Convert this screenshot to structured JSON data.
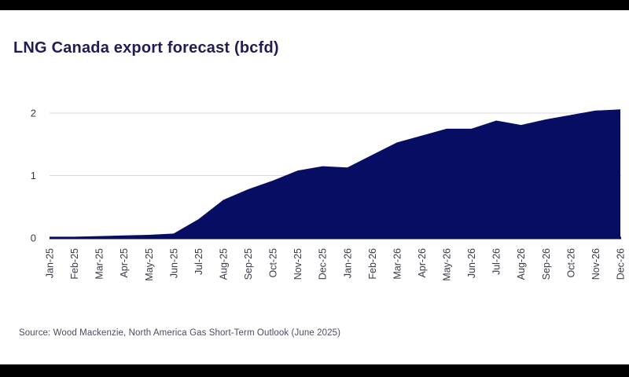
{
  "page": {
    "title": "LNG Canada export forecast (bcfd)",
    "source": "Source: Wood Mackenzie, North America Gas Short-Term Outlook (June 2025)"
  },
  "chart_data": {
    "type": "area",
    "title": "LNG Canada export forecast (bcfd)",
    "ylabel": "",
    "xlabel": "",
    "unit": "bcfd",
    "categories": [
      "Jan-25",
      "Feb-25",
      "Mar-25",
      "Apr-25",
      "May-25",
      "Jun-25",
      "Jul-25",
      "Aug-25",
      "Sep-25",
      "Oct-25",
      "Nov-25",
      "Dec-25",
      "Jan-26",
      "Feb-26",
      "Mar-26",
      "Apr-26",
      "May-26",
      "Jun-26",
      "Jul-26",
      "Aug-26",
      "Sep-26",
      "Oct-26",
      "Nov-26",
      "Dec-26"
    ],
    "values": [
      0.02,
      0.02,
      0.03,
      0.04,
      0.05,
      0.07,
      0.3,
      0.61,
      0.78,
      0.92,
      1.08,
      1.15,
      1.13,
      1.33,
      1.53,
      1.64,
      1.75,
      1.75,
      1.88,
      1.81,
      1.9,
      1.97,
      2.04,
      2.06
    ],
    "ylim": [
      0,
      2.2
    ],
    "yticks": [
      0,
      1,
      2
    ],
    "grid": "horizontal",
    "legend": "none",
    "colors": {
      "fill": "#060d62",
      "baseline": "#060d62",
      "gridline": "#d9d9d9",
      "axis_text": "#3b3b47",
      "title_text": "#221c54",
      "source_text": "#4c4c62",
      "frame_bars": "#000000",
      "background": "#ffffff"
    }
  }
}
